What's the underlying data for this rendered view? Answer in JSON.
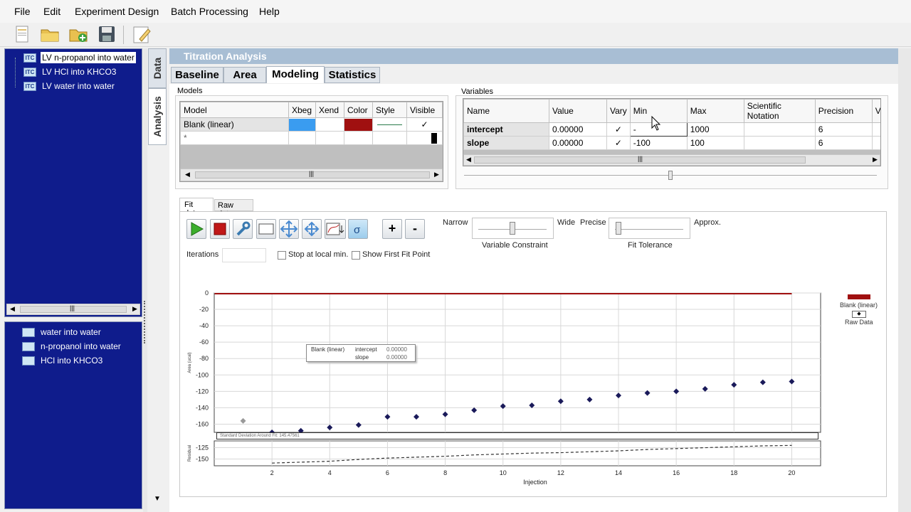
{
  "menu": [
    "File",
    "Edit",
    "Experiment Design",
    "Batch Processing",
    "Help"
  ],
  "toolbar_icons": [
    "new-document-icon",
    "open-folder-icon",
    "add-folder-icon",
    "save-icon",
    "notes-icon"
  ],
  "experiments": [
    {
      "icon": "ITC",
      "label": "LV n-propanol into water",
      "selected": true
    },
    {
      "icon": "ITC",
      "label": "LV HCl into KHCO3",
      "selected": false
    },
    {
      "icon": "ITC",
      "label": "LV water into water",
      "selected": false
    }
  ],
  "datasets": [
    {
      "label": "water into water"
    },
    {
      "label": "n-propanol into water"
    },
    {
      "label": "HCl into KHCO3"
    }
  ],
  "side_tabs": {
    "data": "Data",
    "analysis": "Analysis"
  },
  "panel_title": "Titration Analysis",
  "tabs": [
    "Baseline",
    "Area",
    "Modeling",
    "Statistics"
  ],
  "models": {
    "title": "Models",
    "headers": [
      "Model",
      "Xbeg",
      "Xend",
      "Color",
      "Style",
      "Visible"
    ],
    "rows": [
      {
        "model": "Blank (linear)",
        "color": "#a01010",
        "xbeg_color": "#3a9cf0",
        "visible": "✓"
      }
    ],
    "new_row": "*"
  },
  "variables": {
    "title": "Variables",
    "headers": [
      "Name",
      "Value",
      "Vary",
      "Min",
      "Max",
      "Scientific Notation",
      "Precision",
      "Vi"
    ],
    "rows": [
      {
        "name": "intercept",
        "value": "0.00000",
        "vary": "✓",
        "min": "-",
        "max": "1000",
        "sci": "",
        "precision": "6"
      },
      {
        "name": "slope",
        "value": "0.00000",
        "vary": "✓",
        "min": "-100",
        "max": "100",
        "sci": "",
        "precision": "6"
      }
    ]
  },
  "fit_tabs": [
    "Fit data",
    "Raw data"
  ],
  "fit_controls": {
    "iterations_label": "Iterations",
    "iterations_value": "",
    "stop_local_min": "Stop at local min.",
    "show_first_fit": "Show First Fit Point",
    "plus": "+",
    "minus": "-",
    "narrow": "Narrow",
    "wide": "Wide",
    "precise": "Precise",
    "approx": "Approx.",
    "variable_constraint": "Variable Constraint",
    "fit_tolerance": "Fit Tolerance",
    "constraint_level": 0.5,
    "tolerance_level": 0.05
  },
  "legend": {
    "model": "Blank (linear)",
    "raw": "Raw Data",
    "model_color": "#a01010",
    "raw_color": "#1a1a5a"
  },
  "tooltip": {
    "model": "Blank (linear)",
    "params": [
      {
        "name": "intercept",
        "value": "0.00000"
      },
      {
        "name": "slope",
        "value": "0.00000"
      }
    ]
  },
  "std_dev_label": "Standard Deviation Around Fit: 145.47561",
  "chart_data": {
    "type": "scatter",
    "xlabel": "Injection",
    "ylabel": "Area (ucal)",
    "xlim": [
      0,
      21
    ],
    "ylim": [
      -170,
      0
    ],
    "x_ticks": [
      2,
      4,
      6,
      8,
      10,
      12,
      14,
      16,
      18,
      20
    ],
    "y_ticks": [
      0,
      -20,
      -40,
      -60,
      -80,
      -100,
      -120,
      -140,
      -160
    ],
    "series": [
      {
        "name": "Raw Data",
        "type": "scatter",
        "x": [
          1,
          2,
          3,
          4,
          5,
          6,
          7,
          8,
          9,
          10,
          11,
          12,
          13,
          14,
          15,
          16,
          17,
          18,
          19,
          20
        ],
        "y": [
          -156,
          -170,
          -168,
          -164,
          -161,
          -151,
          -151,
          -148,
          -143,
          -138,
          -137,
          -132,
          -130,
          -125,
          -122,
          -120,
          -117,
          -112,
          -109,
          -108
        ],
        "excluded_points": [
          1
        ]
      },
      {
        "name": "Blank (linear)",
        "type": "line",
        "x": [
          1,
          20
        ],
        "y": [
          0,
          0
        ]
      }
    ],
    "residual": {
      "ylabel": "Residual",
      "y_ticks": [
        -125,
        -150
      ],
      "ylim": [
        -165,
        -110
      ],
      "x": [
        2,
        3,
        4,
        5,
        6,
        7,
        8,
        9,
        10,
        11,
        12,
        13,
        14,
        15,
        16,
        17,
        18,
        19,
        20
      ],
      "y": [
        -159,
        -157,
        -155,
        -151,
        -148,
        -146,
        -144,
        -141,
        -139,
        -137,
        -136,
        -134,
        -132,
        -129,
        -127,
        -125,
        -123,
        -121,
        -120
      ]
    }
  }
}
